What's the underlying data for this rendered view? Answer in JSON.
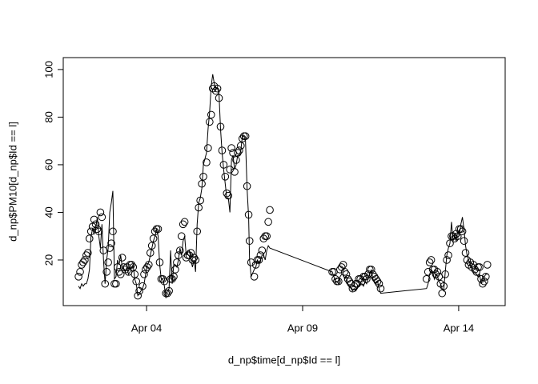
{
  "chart_data": {
    "type": "line",
    "x_label": "d_np$time[d_np$Id == l]",
    "y_label": "d_np$PM10[d_np$Id == l]",
    "x": [
      1.82,
      1.87,
      1.92,
      1.97,
      2.02,
      2.07,
      2.12,
      2.17,
      2.22,
      2.27,
      2.32,
      2.37,
      2.42,
      2.47,
      2.52,
      2.57,
      2.62,
      2.67,
      2.72,
      2.77,
      2.82,
      2.87,
      2.92,
      2.97,
      3.02,
      3.07,
      3.12,
      3.17,
      3.22,
      3.27,
      3.32,
      3.37,
      3.42,
      3.47,
      3.52,
      3.57,
      3.62,
      3.67,
      3.72,
      3.77,
      3.87,
      3.92,
      3.97,
      4.02,
      4.07,
      4.12,
      4.17,
      4.22,
      4.27,
      4.32,
      4.37,
      4.42,
      4.47,
      4.52,
      4.57,
      4.62,
      4.67,
      4.72,
      4.77,
      4.82,
      4.87,
      4.92,
      4.97,
      5.02,
      5.07,
      5.12,
      5.17,
      5.22,
      5.27,
      5.32,
      5.37,
      5.42,
      5.47,
      5.52,
      5.57,
      5.62,
      5.67,
      5.72,
      5.77,
      5.82,
      5.92,
      5.97,
      6.02,
      6.07,
      6.12,
      6.17,
      6.22,
      6.27,
      6.32,
      6.37,
      6.42,
      6.47,
      6.52,
      6.57,
      6.62,
      6.67,
      6.72,
      6.77,
      6.82,
      6.87,
      6.92,
      6.97,
      7.02,
      7.07,
      7.12,
      7.17,
      7.22,
      7.27,
      7.3,
      7.35,
      7.45,
      7.5,
      7.55,
      7.6,
      7.65,
      7.7,
      7.75,
      7.8,
      7.85,
      7.9,
      7.95,
      9.95,
      10.0,
      10.05,
      10.1,
      10.15,
      10.2,
      10.25,
      10.3,
      10.35,
      10.4,
      10.45,
      10.5,
      10.55,
      10.6,
      10.65,
      10.7,
      10.75,
      10.8,
      10.85,
      10.9,
      10.95,
      11.0,
      11.05,
      11.1,
      11.15,
      11.2,
      11.25,
      11.3,
      11.35,
      11.4,
      11.45,
      11.5,
      12.97,
      13.02,
      13.07,
      13.12,
      13.17,
      13.22,
      13.27,
      13.32,
      13.37,
      13.42,
      13.47,
      13.52,
      13.57,
      13.62,
      13.67,
      13.72,
      13.77,
      13.82,
      13.87,
      13.92,
      13.97,
      14.02,
      14.07,
      14.12,
      14.17,
      14.22,
      14.27,
      14.32,
      14.37,
      14.42,
      14.47,
      14.52,
      14.57,
      14.62,
      14.67,
      14.72,
      14.77,
      14.82,
      14.87,
      14.92
    ],
    "series": [
      {
        "style": "points",
        "color": "#000000",
        "values": [
          13,
          15,
          18,
          19,
          20,
          22,
          23,
          29,
          32,
          34,
          37,
          35,
          33,
          32,
          40,
          38,
          24,
          10,
          15,
          19,
          25,
          27,
          32,
          10,
          10,
          17,
          15,
          14,
          21,
          17,
          16,
          17,
          15,
          18,
          18,
          17,
          14,
          11,
          5,
          7,
          9,
          14,
          16,
          17,
          18,
          23,
          26,
          29,
          32,
          33,
          33,
          19,
          12,
          12,
          11,
          6,
          6,
          7,
          12,
          12,
          13,
          16,
          19,
          22,
          24,
          30,
          35,
          36,
          21,
          22,
          22,
          23,
          20,
          21,
          20,
          32,
          42,
          45,
          52,
          55,
          61,
          67,
          78,
          81,
          92,
          93,
          91,
          92,
          88,
          76,
          66,
          60,
          55,
          48,
          47,
          58,
          67,
          65,
          57,
          62,
          65,
          66,
          68,
          71,
          72,
          72,
          51,
          39,
          28,
          19,
          13,
          18,
          20,
          20,
          22,
          24,
          29,
          30,
          30,
          36,
          41,
          15,
          15,
          12,
          11,
          11,
          16,
          17,
          18,
          15,
          14,
          12,
          11,
          10,
          8,
          9,
          10,
          10,
          12,
          12,
          11,
          13,
          13,
          12,
          14,
          16,
          16,
          14,
          13,
          12,
          11,
          10,
          8,
          12,
          15,
          19,
          20,
          16,
          16,
          14,
          15,
          13,
          10,
          6,
          9,
          14,
          20,
          22,
          27,
          30,
          30,
          29,
          31,
          30,
          33,
          33,
          32,
          28,
          23,
          20,
          18,
          19,
          17,
          18,
          16,
          15,
          17,
          17,
          12,
          10,
          11,
          13,
          18
        ]
      },
      {
        "style": "line",
        "color": "#000000",
        "values": [
          9,
          8,
          10,
          9,
          10,
          10,
          12,
          16,
          30,
          33,
          31,
          33,
          38,
          30,
          25,
          35,
          20,
          10,
          20,
          25,
          40,
          44,
          49,
          12,
          13,
          20,
          18,
          22,
          17,
          16,
          15,
          17,
          14,
          15,
          17,
          18,
          12,
          10,
          5,
          6,
          8,
          10,
          14,
          18,
          19,
          22,
          25,
          28,
          30,
          33,
          30,
          18,
          12,
          12,
          9,
          4,
          7,
          8,
          24,
          10,
          18,
          18,
          17,
          20,
          25,
          22,
          28,
          30,
          22,
          24,
          24,
          20,
          17,
          20,
          15,
          35,
          44,
          46,
          50,
          60,
          65,
          75,
          82,
          93,
          98,
          94,
          92,
          92,
          90,
          75,
          65,
          58,
          52,
          46,
          46,
          40,
          62,
          64,
          58,
          60,
          64,
          64,
          66,
          72,
          72,
          70,
          50,
          38,
          20,
          13,
          16,
          17,
          20,
          19,
          20,
          22,
          22,
          20,
          24,
          26,
          25,
          15,
          13,
          11,
          11,
          10,
          13,
          14,
          14,
          12,
          13,
          10,
          9,
          8,
          7,
          8,
          7,
          8,
          9,
          10,
          10,
          9,
          11,
          10,
          12,
          14,
          16,
          12,
          11,
          10,
          11,
          8,
          6,
          8,
          10,
          14,
          16,
          15,
          12,
          14,
          13,
          11,
          10,
          8,
          7,
          15,
          22,
          25,
          27,
          36,
          28,
          30,
          28,
          32,
          30,
          35,
          38,
          33,
          26,
          22,
          20,
          18,
          17,
          15,
          15,
          14,
          13,
          14,
          10,
          12,
          13,
          14,
          14
        ]
      }
    ],
    "xlim": [
      1.33,
      15.49
    ],
    "ylim": [
      0.84,
      105.0
    ],
    "xticks": [
      {
        "value": 4,
        "label": "Apr 04"
      },
      {
        "value": 9,
        "label": "Apr 09"
      },
      {
        "value": 14,
        "label": "Apr 14"
      }
    ],
    "yticks": [
      20,
      40,
      60,
      80,
      100
    ]
  }
}
